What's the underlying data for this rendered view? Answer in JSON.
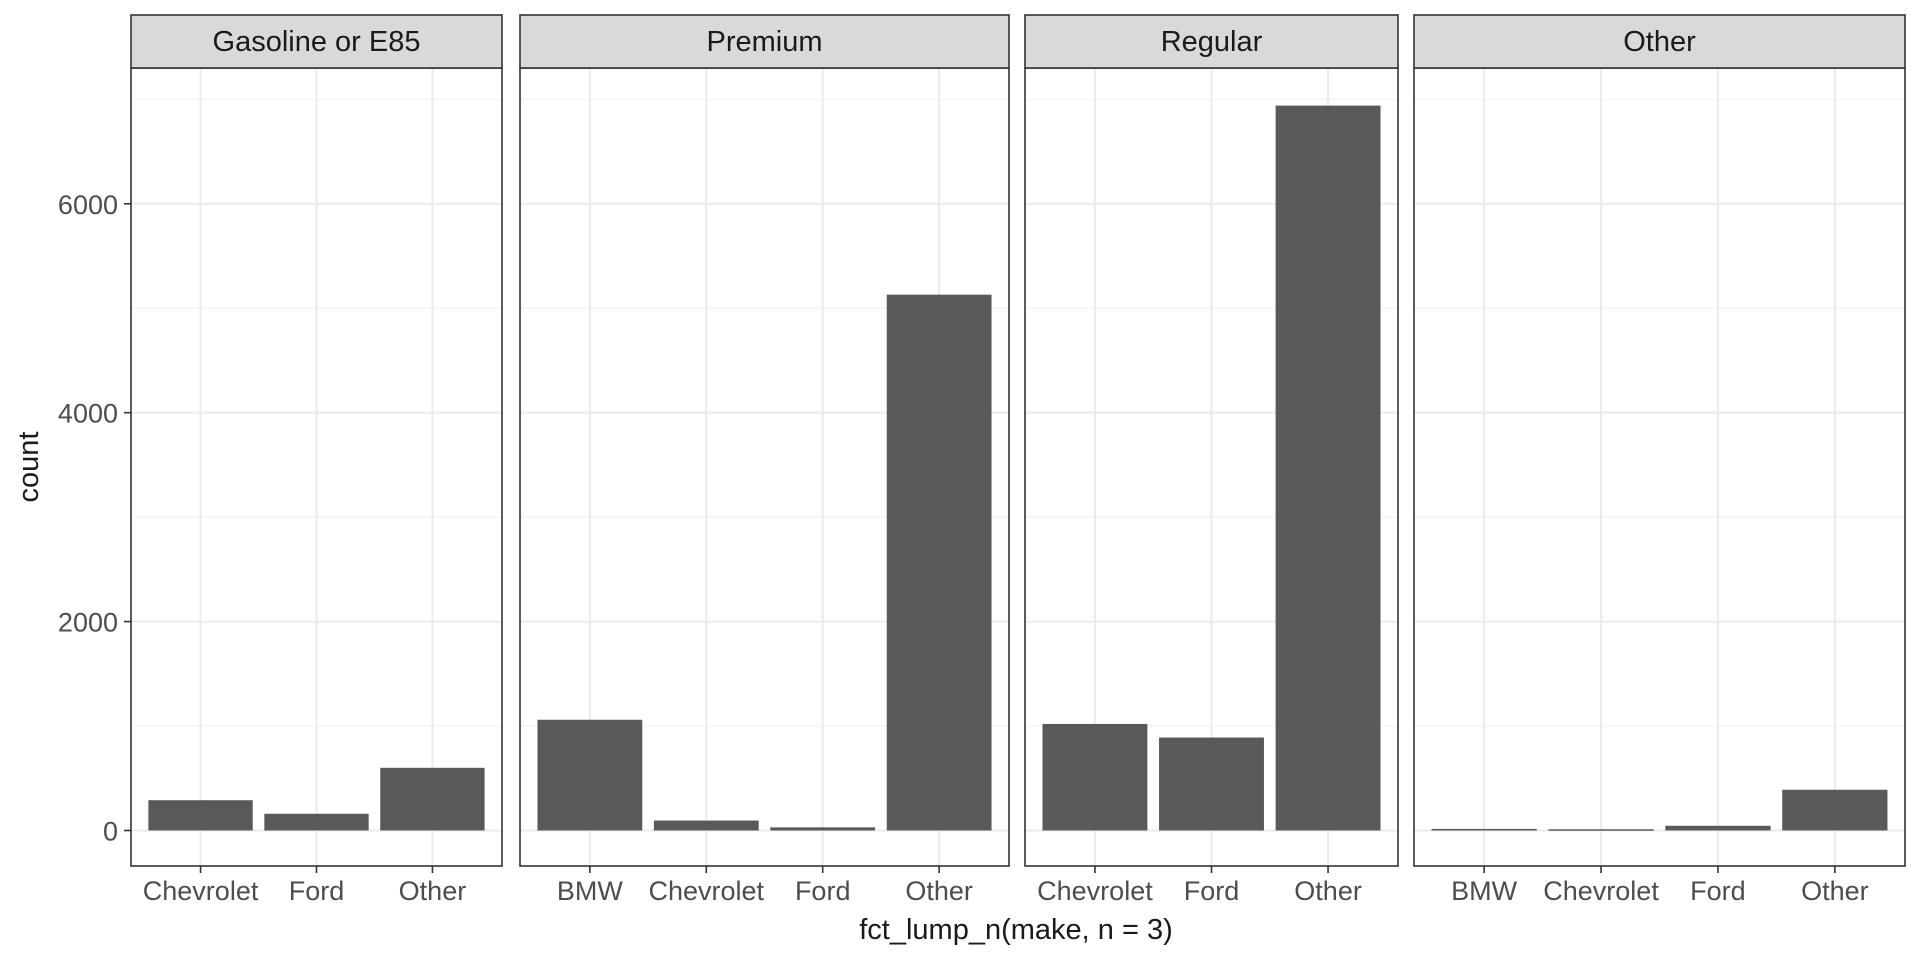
{
  "chart_data": {
    "type": "bar",
    "xlabel": "fct_lump_n(make, n = 3)",
    "ylabel": "count",
    "ylim": [
      -340,
      7300
    ],
    "yticks": [
      0,
      2000,
      4000,
      6000
    ],
    "grid": true,
    "bar_color": "#595959",
    "panels": [
      {
        "strip": "Gasoline or E85",
        "categories": [
          "Chevrolet",
          "Ford",
          "Other"
        ],
        "values": [
          290,
          160,
          600
        ]
      },
      {
        "strip": "Premium",
        "categories": [
          "BMW",
          "Chevrolet",
          "Ford",
          "Other"
        ],
        "values": [
          1060,
          95,
          30,
          5130
        ]
      },
      {
        "strip": "Regular",
        "categories": [
          "Chevrolet",
          "Ford",
          "Other"
        ],
        "values": [
          1020,
          890,
          6940
        ]
      },
      {
        "strip": "Other",
        "categories": [
          "BMW",
          "Chevrolet",
          "Ford",
          "Other"
        ],
        "values": [
          15,
          12,
          45,
          390
        ]
      }
    ]
  }
}
